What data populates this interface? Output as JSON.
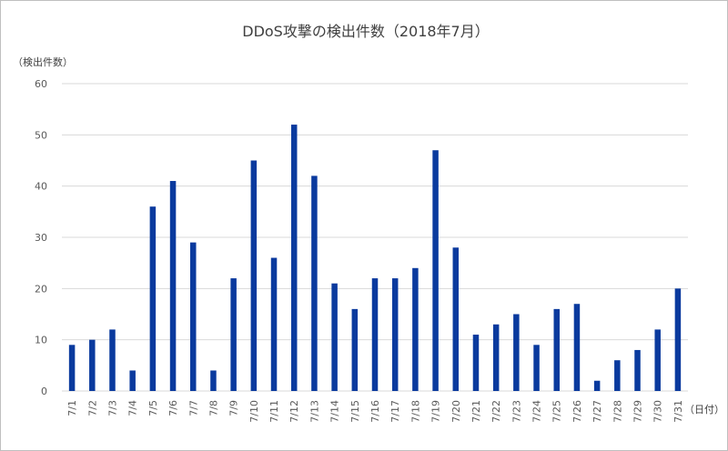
{
  "chart_data": {
    "type": "bar",
    "title": "DDoS攻撃の検出件数（2018年7月）",
    "ylabel": "（検出件数）",
    "xlabel": "（日付）",
    "ylim": [
      0,
      60
    ],
    "yticks": [
      0,
      10,
      20,
      30,
      40,
      50,
      60
    ],
    "grid": true,
    "legend": "none",
    "bar_color": "#0a3a9e",
    "gridline_color": "#d9d9d9",
    "categories": [
      "7/1",
      "7/2",
      "7/3",
      "7/4",
      "7/5",
      "7/6",
      "7/7",
      "7/8",
      "7/9",
      "7/10",
      "7/11",
      "7/12",
      "7/13",
      "7/14",
      "7/15",
      "7/16",
      "7/17",
      "7/18",
      "7/19",
      "7/20",
      "7/21",
      "7/22",
      "7/23",
      "7/24",
      "7/25",
      "7/26",
      "7/27",
      "7/28",
      "7/29",
      "7/30",
      "7/31"
    ],
    "values": [
      9,
      10,
      12,
      4,
      36,
      41,
      29,
      4,
      22,
      45,
      26,
      52,
      42,
      21,
      16,
      22,
      22,
      24,
      47,
      28,
      11,
      13,
      15,
      9,
      16,
      17,
      2,
      6,
      8,
      12,
      20
    ]
  }
}
